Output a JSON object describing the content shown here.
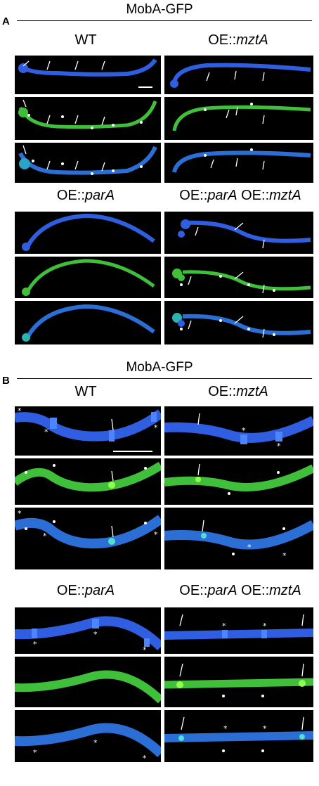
{
  "figure": {
    "panels": [
      {
        "letter": "A",
        "title": "MobA-GFP",
        "columns": [
          {
            "prefix": "WT",
            "italic": ""
          },
          {
            "prefix": "OE::",
            "italic": "mztA"
          },
          {
            "prefix": "OE::",
            "italic": "parA"
          },
          {
            "prefix": "OE::",
            "italic": "parA",
            "middle": " OE::",
            "italic2": "mztA"
          }
        ]
      },
      {
        "letter": "B",
        "title": "MobA-GFP",
        "columns": [
          {
            "prefix": "WT",
            "italic": ""
          },
          {
            "prefix": "OE::",
            "italic": "mztA"
          },
          {
            "prefix": "OE::",
            "italic": "parA"
          },
          {
            "prefix": "OE::",
            "italic": "parA",
            "middle": " OE::",
            "italic2": "mztA"
          }
        ]
      }
    ],
    "channels": [
      "blue",
      "green",
      "merge"
    ],
    "colors": {
      "blue": "#2f5fe0",
      "green": "#3fbf3a",
      "merge": "#2b8fd0",
      "background": "#000000",
      "mark": "#ffffff"
    }
  }
}
